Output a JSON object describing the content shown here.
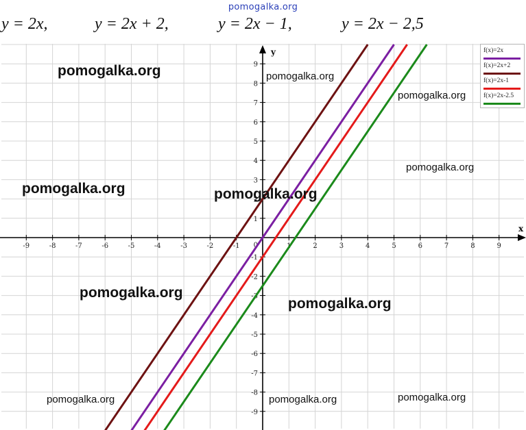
{
  "header": {
    "site": "pomogalka.org"
  },
  "formulas": [
    "y = 2x,",
    "y = 2x + 2,",
    "y = 2x − 1,",
    "y = 2x − 2,5"
  ],
  "watermark": "pomogalka.org",
  "colors": {
    "grid": "#d4d4d4",
    "axis": "#000000",
    "series_2x": "#7b1fa2",
    "series_2x_plus_2": "#6d1212",
    "series_2x_minus_1": "#e41a1a",
    "series_2x_minus_2_5": "#1b8a1b"
  },
  "chart_data": {
    "type": "line",
    "xlabel": "x",
    "ylabel": "y",
    "xlim": [
      -10,
      10
    ],
    "ylim": [
      -10,
      10
    ],
    "x_ticks": [
      -9,
      -8,
      -7,
      -6,
      -5,
      -4,
      -3,
      -2,
      -1,
      1,
      2,
      3,
      4,
      5,
      6,
      7,
      8,
      9
    ],
    "y_ticks": [
      -9,
      -8,
      -7,
      -6,
      -5,
      -4,
      -3,
      -2,
      -1,
      1,
      2,
      3,
      4,
      5,
      6,
      7,
      8,
      9
    ],
    "tick_labels_x": [
      "-9",
      "-8",
      "-7",
      "-6",
      "-5",
      "-4",
      "-3",
      "-2",
      "-1",
      "1",
      "2",
      "3",
      "4",
      "5",
      "6",
      "7",
      "8",
      "9"
    ],
    "tick_labels_y": [
      "9",
      "8",
      "7",
      "6",
      "5",
      "4",
      "3",
      "2",
      "1",
      "-1",
      "-2",
      "-3",
      "-4",
      "-5",
      "-6",
      "-7",
      "-8",
      "-9"
    ],
    "origin_label": "0",
    "grid": true,
    "legend_position": "top-right",
    "series": [
      {
        "name": "f(x)=2x",
        "slope": 2,
        "intercept": 0,
        "x": [
          -5,
          5
        ],
        "y": [
          -10,
          10
        ]
      },
      {
        "name": "f(x)=2x+2",
        "slope": 2,
        "intercept": 2,
        "x": [
          -6,
          4
        ],
        "y": [
          -10,
          10
        ]
      },
      {
        "name": "f(x)=2x-1",
        "slope": 2,
        "intercept": -1,
        "x": [
          -4.5,
          5.5
        ],
        "y": [
          -10,
          10
        ]
      },
      {
        "name": "f(x)=2x-2.5",
        "slope": 2,
        "intercept": -2.5,
        "x": [
          -3.75,
          6.25
        ],
        "y": [
          -10,
          10
        ]
      }
    ]
  }
}
